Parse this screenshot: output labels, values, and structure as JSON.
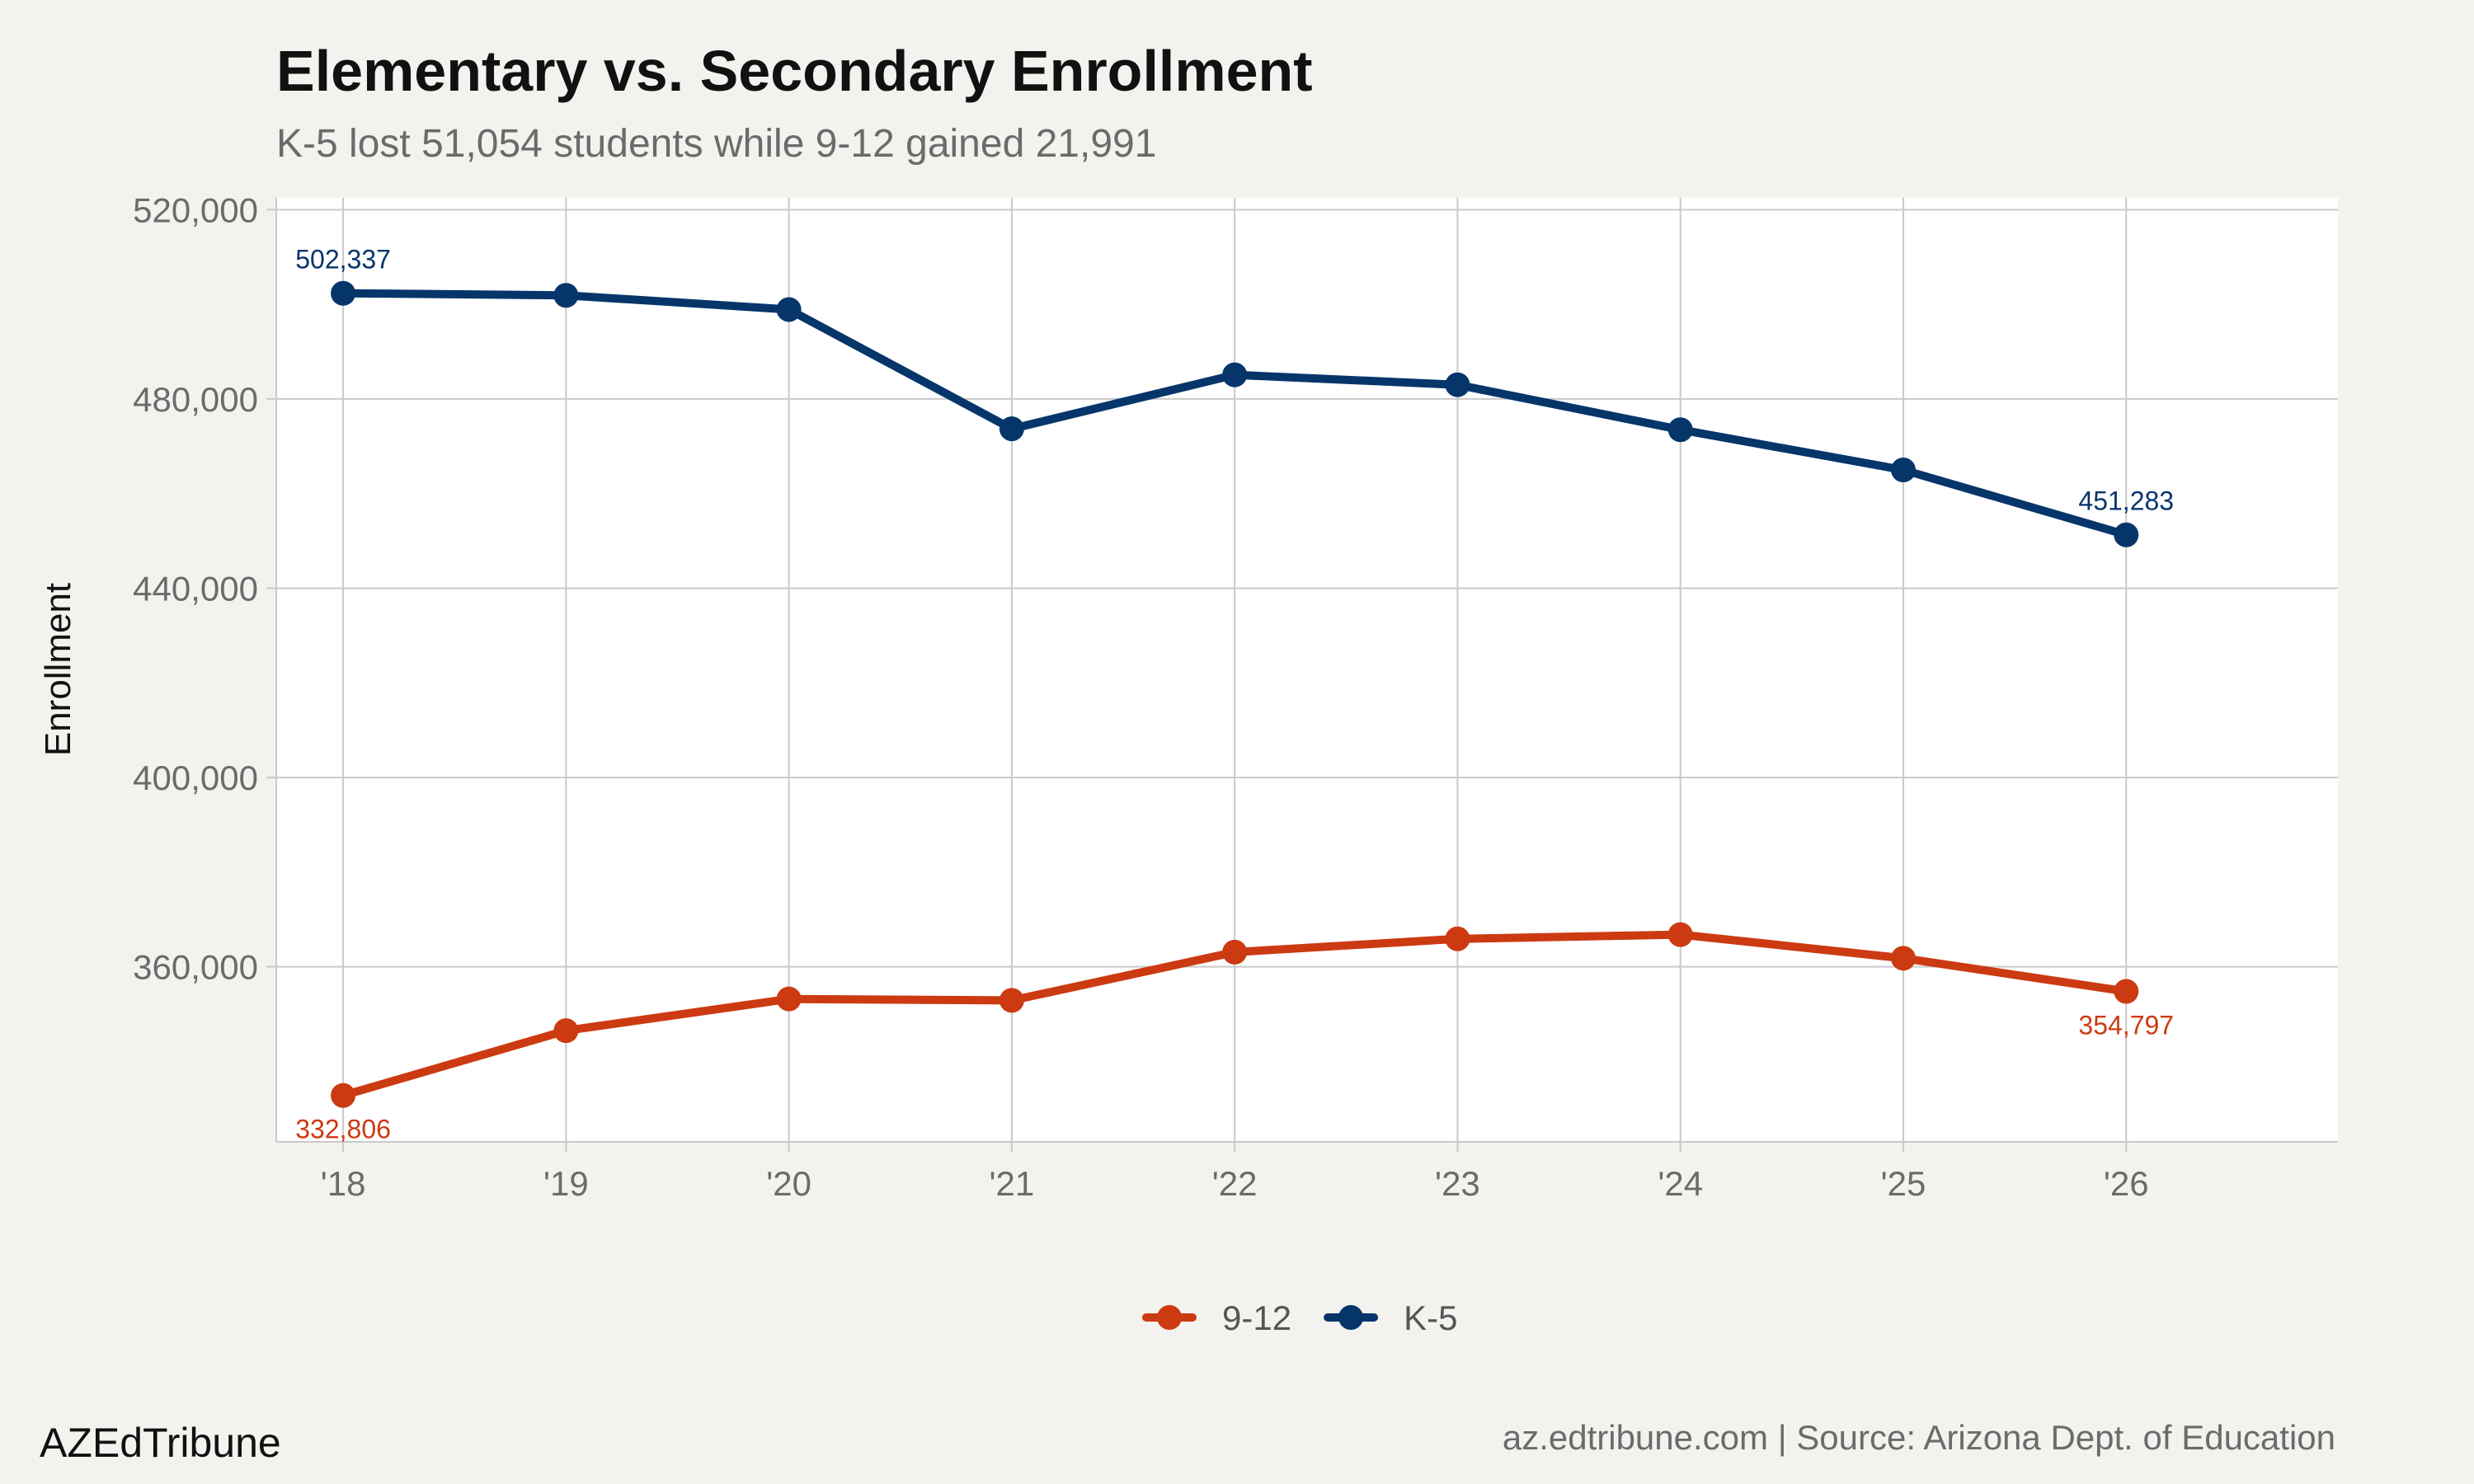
{
  "header": {
    "title": "Elementary vs. Secondary Enrollment",
    "subtitle": "K-5 lost 51,054 students while 9-12 gained 21,991"
  },
  "footer": {
    "brand": "AZEdTribune",
    "source": "az.edtribune.com | Source: Arizona Dept. of Education"
  },
  "chart_data": {
    "type": "line",
    "title": "Elementary vs. Secondary Enrollment",
    "subtitle": "K-5 lost 51,054 students while 9-12 gained 21,991",
    "xlabel": "",
    "ylabel": "Enrollment",
    "categories": [
      "'18",
      "'19",
      "'20",
      "'21",
      "'22",
      "'23",
      "'24",
      "'25",
      "'26"
    ],
    "x": [
      2018,
      2019,
      2020,
      2021,
      2022,
      2023,
      2024,
      2025,
      2026
    ],
    "xlim": [
      2017.7,
      2026.95
    ],
    "ylim": [
      323000,
      522500
    ],
    "yticks": [
      360000,
      400000,
      440000,
      480000,
      520000
    ],
    "ytick_labels": [
      "360,000",
      "400,000",
      "440,000",
      "480,000",
      "520,000"
    ],
    "grid": true,
    "legend": "bottom",
    "series": [
      {
        "name": "9-12",
        "color": "#cc3a12",
        "values": [
          332806,
          346500,
          353200,
          352900,
          363100,
          365900,
          366800,
          361800,
          354797
        ],
        "labels": [
          {
            "index": 0,
            "text": "332,806",
            "position": "below"
          },
          {
            "index": 8,
            "text": "354,797",
            "position": "below"
          }
        ]
      },
      {
        "name": "K-5",
        "color": "#06356a",
        "values": [
          502337,
          501900,
          498900,
          473700,
          485100,
          483000,
          473500,
          465000,
          451283
        ],
        "labels": [
          {
            "index": 0,
            "text": "502,337",
            "position": "above"
          },
          {
            "index": 8,
            "text": "451,283",
            "position": "above"
          }
        ]
      }
    ]
  }
}
